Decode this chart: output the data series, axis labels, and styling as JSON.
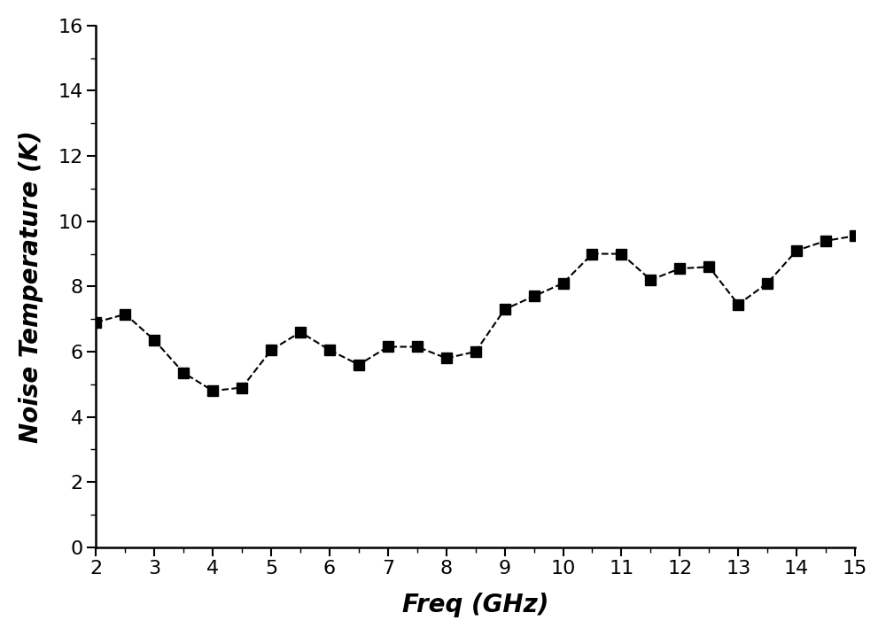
{
  "x": [
    2.0,
    2.5,
    3.0,
    3.5,
    4.0,
    4.5,
    5.0,
    5.5,
    6.0,
    6.5,
    7.0,
    7.5,
    8.0,
    8.5,
    9.0,
    9.5,
    10.0,
    10.5,
    11.0,
    11.5,
    12.0,
    12.5,
    13.0,
    13.5,
    14.0,
    14.5,
    15.0
  ],
  "y": [
    6.9,
    7.15,
    6.35,
    5.35,
    4.8,
    4.9,
    6.05,
    6.6,
    6.05,
    5.6,
    6.15,
    6.15,
    5.8,
    6.0,
    7.3,
    7.7,
    8.1,
    9.0,
    9.0,
    8.2,
    8.55,
    8.6,
    7.45,
    8.1,
    9.1,
    9.4,
    9.55
  ],
  "xlabel": "Freq (GHz)",
  "ylabel": "Noise Temperature (K)",
  "xlim": [
    2,
    15
  ],
  "ylim": [
    0,
    16
  ],
  "xticks": [
    2,
    3,
    4,
    5,
    6,
    7,
    8,
    9,
    10,
    11,
    12,
    13,
    14,
    15
  ],
  "yticks": [
    0,
    2,
    4,
    6,
    8,
    10,
    12,
    14,
    16
  ],
  "line_color": "#000000",
  "marker": "s",
  "marker_size": 8,
  "line_style": "--",
  "line_width": 1.5,
  "background_color": "#ffffff",
  "tick_fontsize": 16,
  "label_fontsize": 20
}
